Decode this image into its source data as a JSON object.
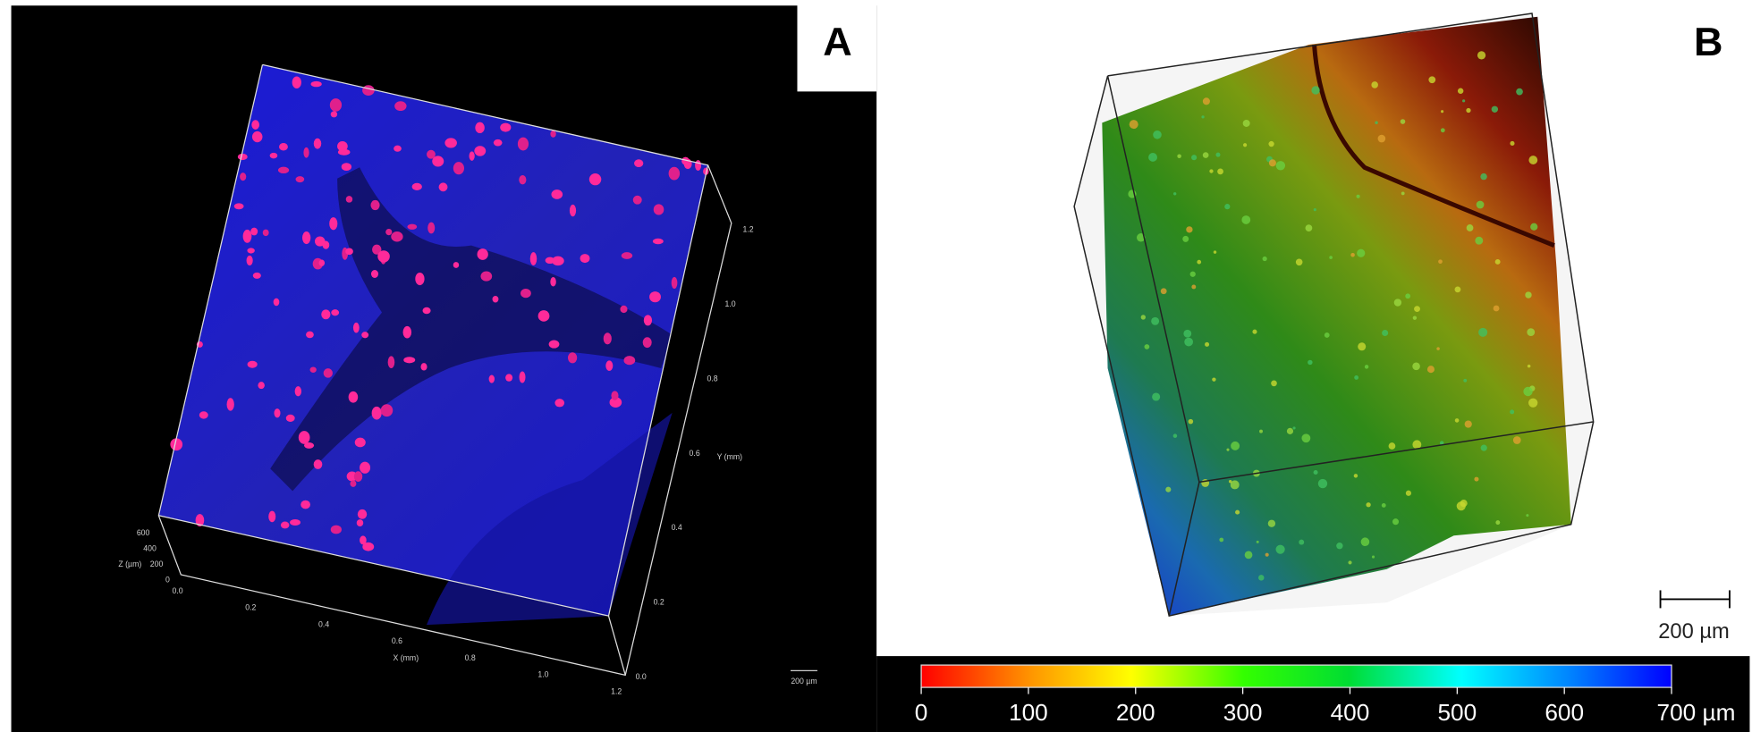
{
  "panels": [
    {
      "label": "A",
      "x_axis": {
        "title": "X (mm)",
        "ticks": [
          "0.0",
          "0.2",
          "0.4",
          "0.6",
          "0.8",
          "1.0",
          "1.2"
        ]
      },
      "y_axis": {
        "title": "Y (mm)",
        "ticks": [
          "0.0",
          "0.2",
          "0.4",
          "0.6",
          "0.8",
          "1.0",
          "1.2"
        ]
      },
      "z_axis": {
        "title": "Z (µm)",
        "ticks": [
          "600",
          "400",
          "200",
          "0"
        ]
      },
      "scale_bar": "200 µm"
    },
    {
      "label": "B",
      "scale_bar": "200 µm",
      "color_bar": {
        "ticks": [
          "0",
          "100",
          "200",
          "300",
          "400",
          "500",
          "600",
          "700 µm"
        ]
      }
    }
  ]
}
